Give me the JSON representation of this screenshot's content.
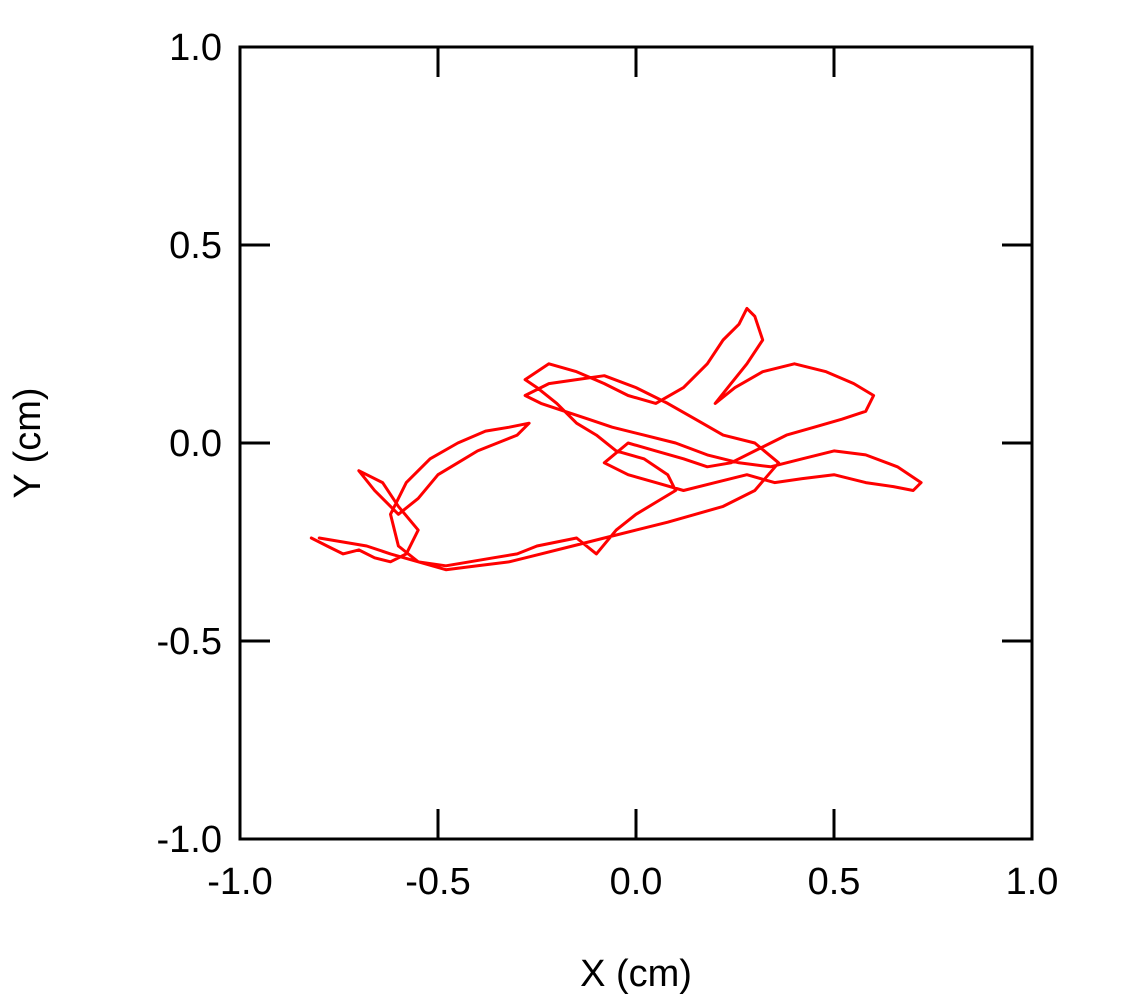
{
  "chart_data": {
    "type": "line",
    "title": "",
    "xlabel": "X (cm)",
    "ylabel": "Y (cm)",
    "xlim": [
      -1.0,
      1.0
    ],
    "ylim": [
      -1.0,
      1.0
    ],
    "grid": false,
    "x_ticks": [
      -1.0,
      -0.5,
      0.0,
      0.5,
      1.0
    ],
    "y_ticks": [
      -1.0,
      -0.5,
      0.0,
      0.5,
      1.0
    ],
    "x_tick_labels": [
      "-1.0",
      "-0.5",
      "0.0",
      "0.5",
      "1.0"
    ],
    "y_tick_labels": [
      "-1.0",
      "-0.5",
      "0.0",
      "0.5",
      "1.0"
    ],
    "series_color": "#ff0000",
    "series": [
      {
        "name": "",
        "x": [
          -0.82,
          -0.78,
          -0.74,
          -0.7,
          -0.66,
          -0.62,
          -0.58,
          -0.55,
          -0.6,
          -0.64,
          -0.7,
          -0.66,
          -0.6,
          -0.55,
          -0.5,
          -0.45,
          -0.4,
          -0.35,
          -0.3,
          -0.27,
          -0.32,
          -0.38,
          -0.45,
          -0.52,
          -0.58,
          -0.62,
          -0.6,
          -0.55,
          -0.48,
          -0.42,
          -0.36,
          -0.3,
          -0.25,
          -0.2,
          -0.15,
          -0.1,
          -0.05,
          0.0,
          0.05,
          0.1,
          0.08,
          0.02,
          -0.05,
          -0.1,
          -0.15,
          -0.2,
          -0.25,
          -0.28,
          -0.22,
          -0.15,
          -0.08,
          -0.02,
          0.05,
          0.12,
          0.18,
          0.22,
          0.26,
          0.28,
          0.3,
          0.32,
          0.28,
          0.24,
          0.2,
          0.25,
          0.32,
          0.4,
          0.48,
          0.55,
          0.6,
          0.58,
          0.52,
          0.45,
          0.38,
          0.3,
          0.24,
          0.18,
          0.12,
          0.05,
          -0.02,
          -0.08,
          -0.02,
          0.05,
          0.12,
          0.2,
          0.28,
          0.35,
          0.42,
          0.5,
          0.58,
          0.65,
          0.7,
          0.72,
          0.66,
          0.58,
          0.5,
          0.42,
          0.34,
          0.26,
          0.18,
          0.1,
          0.02,
          -0.06,
          -0.12,
          -0.18,
          -0.24,
          -0.28,
          -0.22,
          -0.15,
          -0.08,
          0.0,
          0.08,
          0.15,
          0.22,
          0.3,
          0.36,
          0.3,
          0.22,
          0.15,
          0.08,
          0.0,
          -0.08,
          -0.16,
          -0.24,
          -0.32,
          -0.4,
          -0.48,
          -0.55,
          -0.62,
          -0.68,
          -0.74,
          -0.8
        ],
        "y": [
          -0.24,
          -0.26,
          -0.28,
          -0.27,
          -0.29,
          -0.3,
          -0.28,
          -0.22,
          -0.16,
          -0.1,
          -0.07,
          -0.12,
          -0.18,
          -0.14,
          -0.08,
          -0.05,
          -0.02,
          0.0,
          0.02,
          0.05,
          0.04,
          0.03,
          0.0,
          -0.04,
          -0.1,
          -0.18,
          -0.26,
          -0.3,
          -0.31,
          -0.3,
          -0.29,
          -0.28,
          -0.26,
          -0.25,
          -0.24,
          -0.28,
          -0.22,
          -0.18,
          -0.15,
          -0.12,
          -0.08,
          -0.04,
          -0.02,
          0.02,
          0.05,
          0.1,
          0.14,
          0.16,
          0.2,
          0.18,
          0.15,
          0.12,
          0.1,
          0.14,
          0.2,
          0.26,
          0.3,
          0.34,
          0.32,
          0.26,
          0.2,
          0.15,
          0.1,
          0.14,
          0.18,
          0.2,
          0.18,
          0.15,
          0.12,
          0.08,
          0.06,
          0.04,
          0.02,
          -0.02,
          -0.05,
          -0.06,
          -0.04,
          -0.02,
          0.0,
          -0.05,
          -0.08,
          -0.1,
          -0.12,
          -0.1,
          -0.08,
          -0.1,
          -0.09,
          -0.08,
          -0.1,
          -0.11,
          -0.12,
          -0.1,
          -0.06,
          -0.03,
          -0.02,
          -0.04,
          -0.06,
          -0.05,
          -0.03,
          0.0,
          0.02,
          0.04,
          0.06,
          0.08,
          0.1,
          0.12,
          0.15,
          0.16,
          0.17,
          0.14,
          0.1,
          0.06,
          0.02,
          0.0,
          -0.05,
          -0.12,
          -0.16,
          -0.18,
          -0.2,
          -0.22,
          -0.24,
          -0.26,
          -0.28,
          -0.3,
          -0.31,
          -0.32,
          -0.3,
          -0.28,
          -0.26,
          -0.25,
          -0.24
        ]
      }
    ]
  }
}
